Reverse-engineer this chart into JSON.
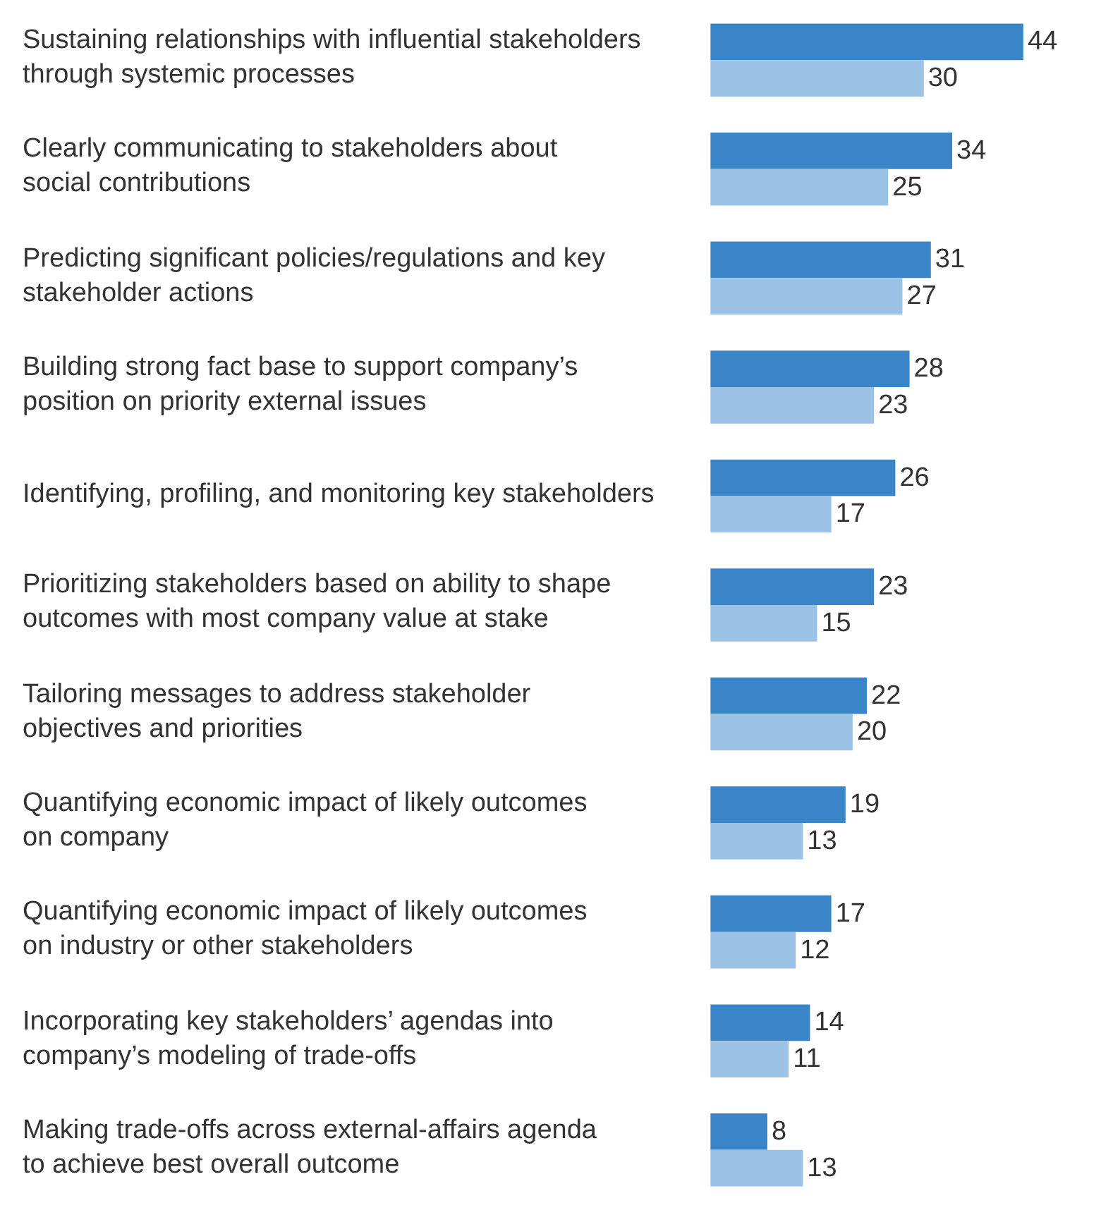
{
  "chart_data": {
    "type": "bar",
    "orientation": "horizontal",
    "data_labels": true,
    "legend": false,
    "tick_labels": false,
    "categories": [
      "Sustaining relationships with influential stakeholders\nthrough systemic processes",
      "Clearly communicating to stakeholders about\nsocial contributions",
      "Predicting significant policies/regulations and key\nstakeholder actions",
      "Building strong fact base to support company’s\nposition on priority external issues",
      "Identifying, profiling, and monitoring key stakeholders",
      "Prioritizing stakeholders based on ability to shape\noutcomes with most company value at stake",
      "Tailoring messages to address stakeholder\nobjectives and priorities",
      "Quantifying economic impact of likely outcomes\non company",
      "Quantifying economic impact of likely outcomes\non industry or other stakeholders",
      "Incorporating key stakeholders’ agendas into\ncompany’s modeling of trade-offs",
      "Making trade-offs across external-affairs agenda\nto achieve best overall outcome"
    ],
    "series": [
      {
        "color": "#3a85c8",
        "values": [
          44,
          34,
          31,
          28,
          26,
          23,
          22,
          19,
          17,
          14,
          8
        ]
      },
      {
        "color": "#9cc3e6",
        "values": [
          30,
          25,
          27,
          23,
          17,
          15,
          20,
          13,
          12,
          11,
          13
        ]
      }
    ]
  }
}
